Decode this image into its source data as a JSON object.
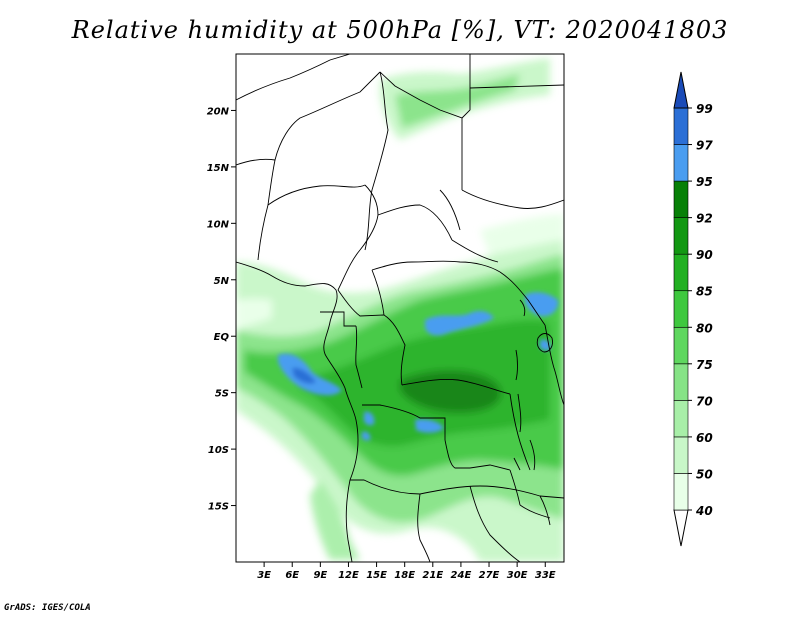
{
  "title": "Relative humidity at 500hPa [%], VT: 2020041803",
  "credit": "GrADS: IGES/COLA",
  "map": {
    "lat_labels": [
      "20N",
      "15N",
      "10N",
      "5N",
      "EQ",
      "5S",
      "10S",
      "15S"
    ],
    "lon_labels": [
      "3E",
      "6E",
      "9E",
      "12E",
      "15E",
      "18E",
      "21E",
      "24E",
      "27E",
      "30E",
      "33E"
    ],
    "lat_values": [
      20,
      15,
      10,
      5,
      0,
      -5,
      -10,
      -15
    ],
    "lon_values": [
      3,
      6,
      9,
      12,
      15,
      18,
      21,
      24,
      27,
      30,
      33
    ],
    "lat_range": [
      -20,
      25
    ],
    "lon_range": [
      0,
      35
    ]
  },
  "colorbar": {
    "labels": [
      "40",
      "50",
      "60",
      "70",
      "75",
      "80",
      "85",
      "90",
      "92",
      "95",
      "97",
      "99"
    ],
    "colors": [
      "#ffffff",
      "#e8ffe8",
      "#c8f7c8",
      "#a8efa8",
      "#86e386",
      "#5fd75f",
      "#3fc83f",
      "#22b022",
      "#129812",
      "#078007",
      "#4a9df0",
      "#2b6fd6",
      "#1a4bb8"
    ]
  }
}
